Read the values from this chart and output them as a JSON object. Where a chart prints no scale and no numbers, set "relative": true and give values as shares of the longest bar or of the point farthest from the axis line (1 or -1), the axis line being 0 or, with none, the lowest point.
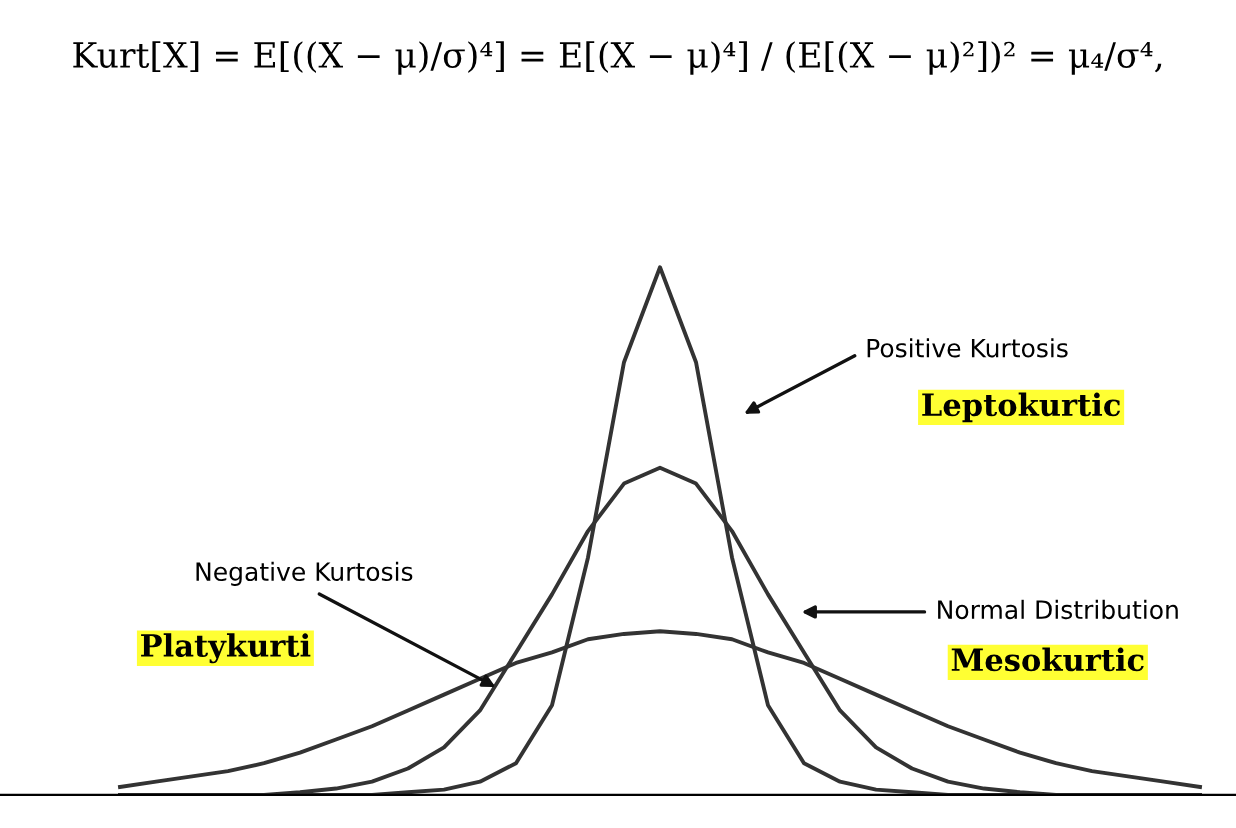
{
  "chart_data": {
    "type": "line",
    "relative": true,
    "title": "Kurt[X] = E[((X − μ)/σ)⁴] = E[(X − μ)⁴] / (E[(X − μ)²])² = μ₄/σ⁴,",
    "categories": [
      null,
      null,
      null,
      null,
      null,
      null,
      null,
      null,
      null,
      null,
      null,
      null,
      null,
      null,
      null,
      null,
      null,
      null,
      null,
      null,
      null,
      null,
      null,
      null,
      null,
      null,
      null,
      null,
      null,
      null,
      null
    ],
    "series": [
      {
        "color": "#333333",
        "values": [
          0,
          0,
          0,
          0,
          0,
          0,
          0,
          0,
          0.005,
          0.01,
          0.025,
          0.06,
          0.17,
          0.45,
          0.82,
          1.0,
          0.82,
          0.45,
          0.17,
          0.06,
          0.025,
          0.01,
          0.005,
          0,
          0,
          0,
          0,
          0,
          0,
          0,
          0
        ]
      },
      {
        "color": "#333333",
        "values": [
          0,
          0,
          0,
          0,
          0,
          0.005,
          0.012,
          0.025,
          0.05,
          0.09,
          0.16,
          0.27,
          0.38,
          0.5,
          0.59,
          0.62,
          0.59,
          0.5,
          0.38,
          0.27,
          0.16,
          0.09,
          0.05,
          0.025,
          0.012,
          0.005,
          0,
          0,
          0,
          0,
          0
        ]
      },
      {
        "color": "#333333",
        "values": [
          0.015,
          0.025,
          0.035,
          0.045,
          0.06,
          0.08,
          0.105,
          0.13,
          0.16,
          0.19,
          0.22,
          0.25,
          0.27,
          0.295,
          0.305,
          0.31,
          0.305,
          0.295,
          0.27,
          0.25,
          0.22,
          0.19,
          0.16,
          0.13,
          0.105,
          0.08,
          0.06,
          0.045,
          0.035,
          0.025,
          0.015
        ]
      }
    ],
    "annotations": [
      "Positive Kurtosis",
      "Leptokurtic",
      "Negative Kurtosis",
      "Platykurti",
      "Normal Distribution",
      "Mesokurtic"
    ],
    "grid": false,
    "legend": false,
    "marker": "none",
    "line_style": "solid"
  }
}
